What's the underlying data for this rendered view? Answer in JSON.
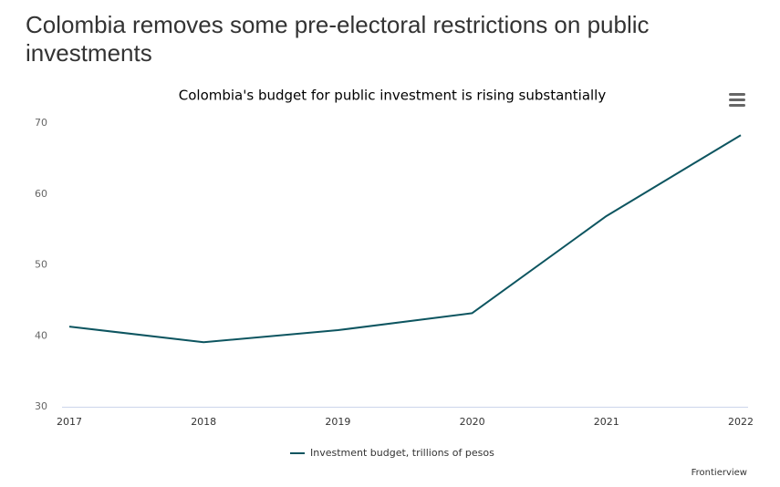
{
  "headline": "Colombia removes some pre-electoral restrictions on public investments",
  "chart_data": {
    "type": "line",
    "title": "Colombia's budget for public investment is rising substantially",
    "categories": [
      "2017",
      "2018",
      "2019",
      "2020",
      "2021",
      "2022"
    ],
    "series": [
      {
        "name": "Investment budget, trillions of pesos",
        "color": "#0d5560",
        "values": [
          41.3,
          39.1,
          40.8,
          43.2,
          56.9,
          68.3
        ]
      }
    ],
    "ylim": [
      30,
      70
    ],
    "yticks": [
      30,
      40,
      50,
      60,
      70
    ],
    "grid": false,
    "credits": "Frontierview"
  }
}
